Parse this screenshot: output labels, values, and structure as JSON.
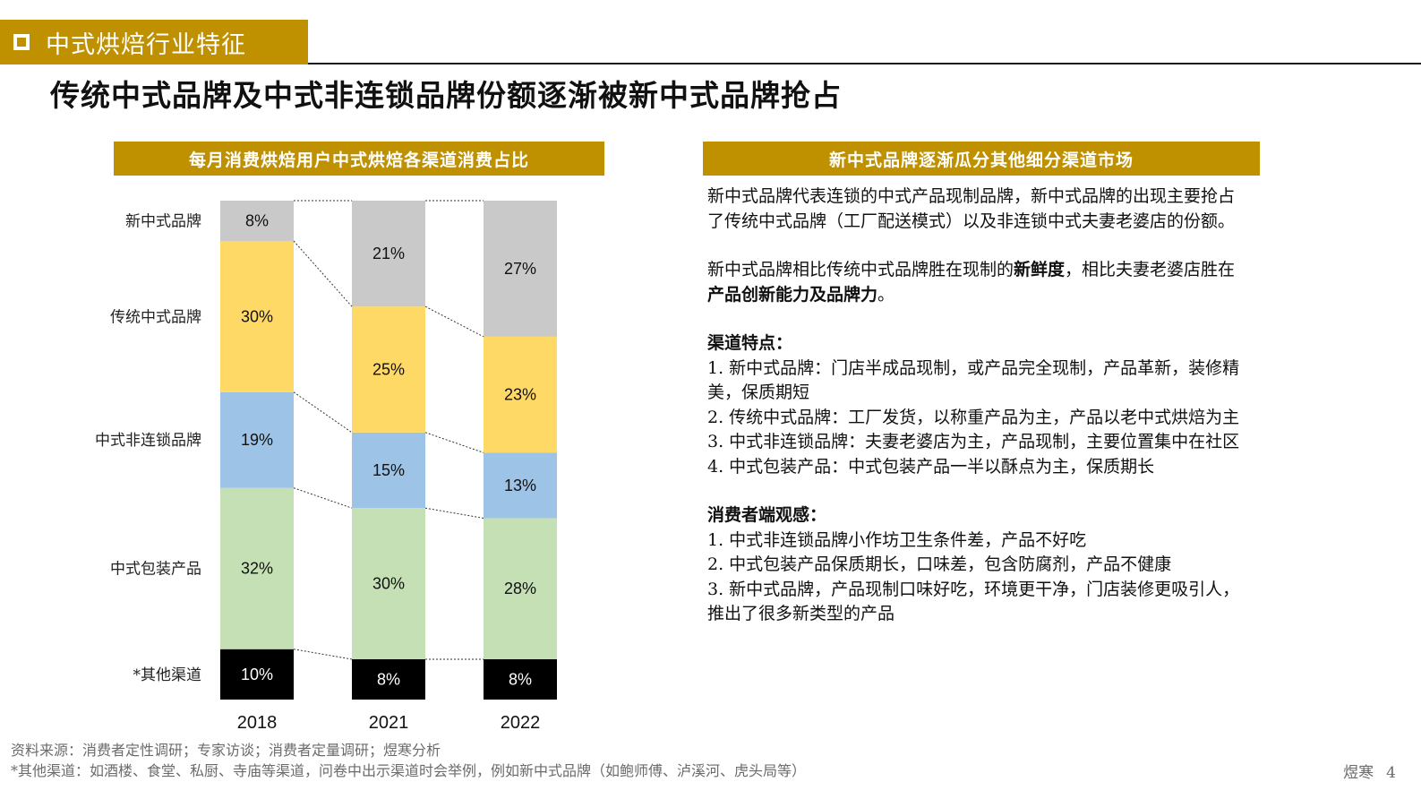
{
  "section": {
    "label": "中式烘焙行业特征"
  },
  "page_title": "传统中式品牌及中式非连锁品牌份额逐渐被新中式品牌抢占",
  "chart_header": "每月消费烘焙用户中式烘焙各渠道消费占比",
  "text_header": "新中式品牌逐渐瓜分其他细分渠道市场",
  "colors": {
    "accent": "#bf9000",
    "新中式品牌": "#c9c9c9",
    "传统中式品牌": "#ffd966",
    "中式非连锁品牌": "#9dc3e6",
    "中式包装产品": "#c5e0b4",
    "*其他渠道": "#000000"
  },
  "chart_data": {
    "type": "bar",
    "stacked": true,
    "normalized": true,
    "categories": [
      "2018",
      "2021",
      "2022"
    ],
    "series": [
      {
        "name": "新中式品牌",
        "values": [
          8,
          21,
          27
        ]
      },
      {
        "name": "传统中式品牌",
        "values": [
          30,
          25,
          23
        ]
      },
      {
        "name": "中式非连锁品牌",
        "values": [
          19,
          15,
          13
        ]
      },
      {
        "name": "中式包装产品",
        "values": [
          32,
          30,
          28
        ]
      },
      {
        "name": "*其他渠道",
        "values": [
          10,
          8,
          8
        ]
      }
    ],
    "value_suffix": "%",
    "legend": "left"
  },
  "text": {
    "p1": "新中式品牌代表连锁的中式产品现制品牌，新中式品牌的出现主要抢占了传统中式品牌（工厂配送模式）以及非连锁中式夫妻老婆店的份额。",
    "p2_a": "新中式品牌相比传统中式品牌胜在现制的",
    "p2_b": "新鲜度",
    "p2_c": "，相比夫妻老婆店胜在",
    "p2_d": "产品创新能力及品牌力",
    "p2_e": "。",
    "features_heading": "渠道特点：",
    "f1": "1.  新中式品牌：门店半成品现制，或产品完全现制，产品革新，装修精美，保质期短",
    "f2": "2.  传统中式品牌：工厂发货，以称重产品为主，产品以老中式烘焙为主",
    "f3": "3.  中式非连锁品牌：夫妻老婆店为主，产品现制，主要位置集中在社区",
    "f4": "4.  中式包装产品：中式包装产品一半以酥点为主，保质期长",
    "consumer_heading": "消费者端观感：",
    "c1": "1.  中式非连锁品牌小作坊卫生条件差，产品不好吃",
    "c2": "2.  中式包装产品保质期长，口味差，包含防腐剂，产品不健康",
    "c3": "3.  新中式品牌，产品现制口味好吃，环境更干净，门店装修更吸引人，推出了很多新类型的产品"
  },
  "source": "资料来源：消费者定性调研；专家访谈；消费者定量调研；煜寒分析",
  "footnote": "*其他渠道：如酒楼、食堂、私厨、寺庙等渠道，问卷中出示渠道时会举例，例如新中式品牌（如鲍师傅、泸溪河、虎头局等）",
  "footer": {
    "brand": "煜寒",
    "page": "4"
  }
}
